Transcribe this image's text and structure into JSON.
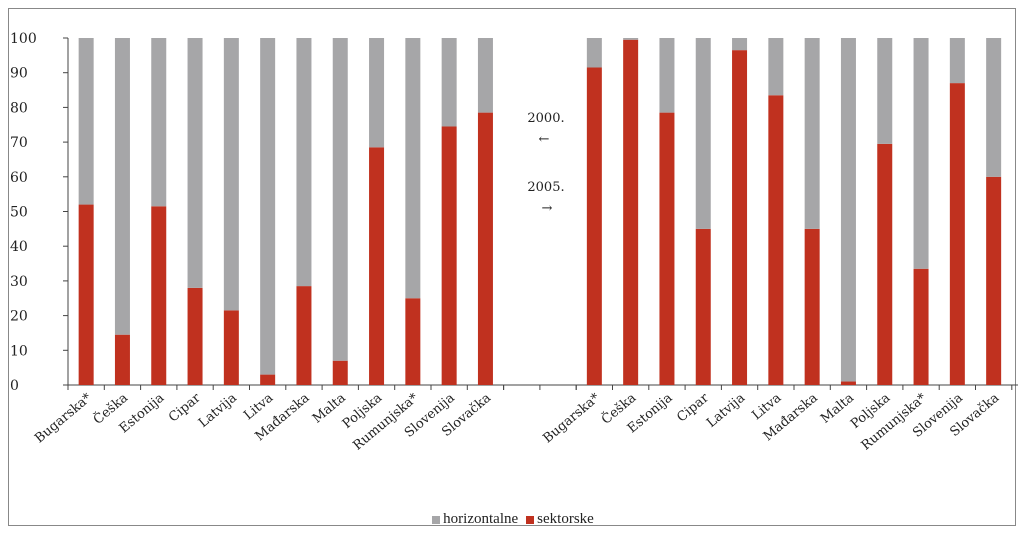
{
  "chart_data": {
    "type": "bar",
    "stacked": true,
    "ylim": [
      0,
      100
    ],
    "yticks": [
      "0",
      "10",
      "20",
      "30",
      "40",
      "50",
      "60",
      "70",
      "80",
      "90",
      "100"
    ],
    "grid": false,
    "legend_position": "bottom",
    "groups": [
      {
        "categories": [
          "Bugarska*",
          "Češka",
          "Estonija",
          "Cipar",
          "Latvija",
          "Litva",
          "Mađarska",
          "Malta",
          "Poljska",
          "Rumunjska*",
          "Slovenija",
          "Slovačka"
        ],
        "series": [
          {
            "name": "sektorske",
            "values": [
              52,
              14.5,
              51.5,
              28,
              21.5,
              3,
              28.5,
              7,
              68.5,
              25,
              74.5,
              78.5
            ]
          },
          {
            "name": "horizontalne",
            "values": [
              48,
              85.5,
              48.5,
              72,
              78.5,
              97,
              71.5,
              93,
              31.5,
              75,
              25.5,
              21.5
            ]
          }
        ]
      },
      {
        "categories": [
          "Bugarska*",
          "Češka",
          "Estonija",
          "Cipar",
          "Latvija",
          "Litva",
          "Mađarska",
          "Malta",
          "Poljska",
          "Rumunjska*",
          "Slovenija",
          "Slovačka"
        ],
        "series": [
          {
            "name": "sektorske",
            "values": [
              91.5,
              99.5,
              78.5,
              45,
              96.5,
              83.5,
              45,
              1,
              69.5,
              33.5,
              87,
              60
            ]
          },
          {
            "name": "horizontalne",
            "values": [
              8.5,
              0.5,
              21.5,
              55,
              3.5,
              16.5,
              55,
              99,
              30.5,
              66.5,
              13,
              40
            ]
          }
        ]
      }
    ],
    "annotations": [
      {
        "text": "2000.",
        "arrow": "←"
      },
      {
        "text": "2005.",
        "arrow": "→"
      }
    ],
    "legend": [
      {
        "name": "horizontalne",
        "color": "#a6a6a8"
      },
      {
        "name": "sektorske",
        "color": "#c0311f"
      }
    ],
    "colors": {
      "sektorske": "#c0311f",
      "horizontalne": "#a6a6a8",
      "axis": "#444444"
    }
  }
}
